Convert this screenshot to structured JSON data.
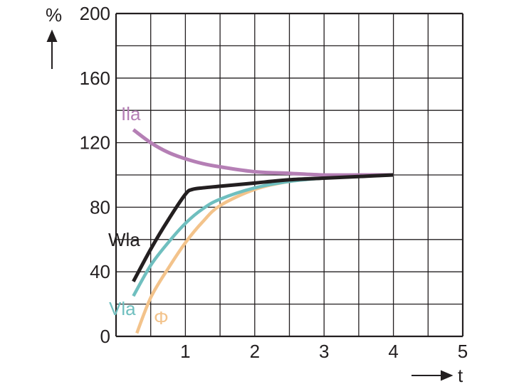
{
  "chart_data": {
    "type": "line",
    "xlabel": "t",
    "ylabel": "%",
    "xlim": [
      0,
      5
    ],
    "ylim": [
      0,
      200
    ],
    "x_ticks": [
      "1",
      "2",
      "3",
      "4",
      "5"
    ],
    "y_ticks": [
      "0",
      "40",
      "80",
      "120",
      "160",
      "200"
    ],
    "grid": true,
    "grid_x_step": 0.5,
    "grid_y_step": 20,
    "series": [
      {
        "name": "Ila",
        "color": "#b57fb5",
        "x": [
          0.25,
          0.5,
          0.75,
          1.0,
          1.25,
          1.5,
          2.0,
          2.5,
          3.0,
          3.5,
          4.0
        ],
        "y": [
          128,
          120,
          114,
          110,
          107,
          105,
          102,
          101,
          100,
          100,
          100
        ]
      },
      {
        "name": "Wla",
        "color": "#231f20",
        "x": [
          0.25,
          0.5,
          0.75,
          1.0,
          1.1,
          1.25,
          1.5,
          2.0,
          2.5,
          3.0,
          3.5,
          4.0
        ],
        "y": [
          34,
          54,
          72,
          88,
          91,
          92,
          93,
          95,
          97,
          98,
          99,
          100
        ]
      },
      {
        "name": "Vla",
        "color": "#6fbfbf",
        "x": [
          0.25,
          0.5,
          0.75,
          1.0,
          1.25,
          1.5,
          2.0,
          2.5,
          3.0,
          3.5,
          4.0
        ],
        "y": [
          25,
          44,
          58,
          70,
          79,
          85,
          92,
          96,
          98,
          99,
          100
        ]
      },
      {
        "name": "Φ",
        "color": "#f3c38b",
        "x": [
          0.3,
          0.5,
          0.75,
          1.0,
          1.25,
          1.5,
          2.0,
          2.5,
          3.0,
          3.5,
          4.0
        ],
        "y": [
          2,
          24,
          42,
          58,
          71,
          81,
          91,
          96,
          98,
          99,
          100
        ]
      }
    ]
  }
}
